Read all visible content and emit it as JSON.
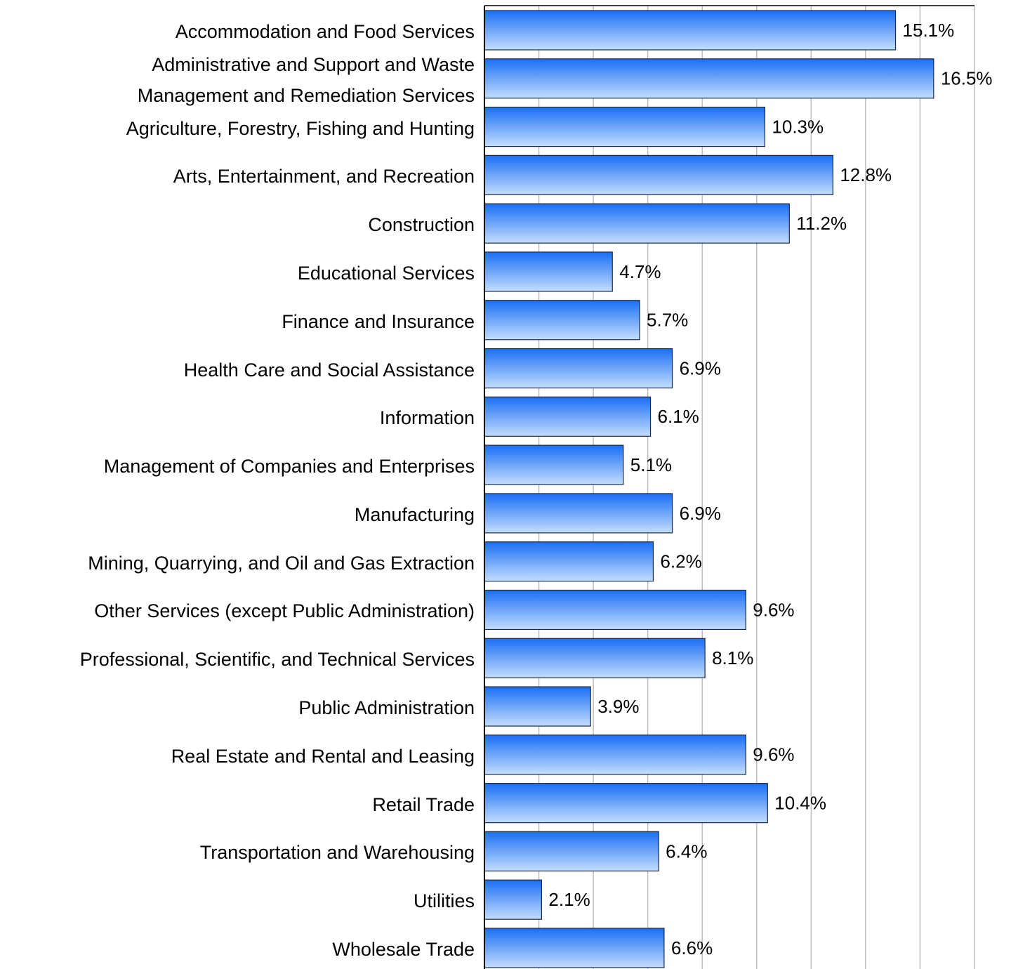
{
  "chart_data": {
    "type": "bar",
    "orientation": "horizontal",
    "categories": [
      "Accommodation and Food Services",
      "Administrative and Support and Waste Management and Remediation Services",
      "Agriculture, Forestry, Fishing and Hunting",
      "Arts, Entertainment, and Recreation",
      "Construction",
      "Educational Services",
      "Finance and Insurance",
      "Health Care and Social Assistance",
      "Information",
      "Management of Companies and Enterprises",
      "Manufacturing",
      "Mining, Quarrying, and Oil and Gas Extraction",
      "Other Services (except Public Administration)",
      "Professional, Scientific, and Technical Services",
      "Public Administration",
      "Real Estate and Rental and Leasing",
      "Retail Trade",
      "Transportation and Warehousing",
      "Utilities",
      "Wholesale Trade"
    ],
    "values": [
      15.1,
      16.5,
      10.3,
      12.8,
      11.2,
      4.7,
      5.7,
      6.9,
      6.1,
      5.1,
      6.9,
      6.2,
      9.6,
      8.1,
      3.9,
      9.6,
      10.4,
      6.4,
      2.1,
      6.6
    ],
    "value_labels": [
      "15.1%",
      "16.5%",
      "10.3%",
      "12.8%",
      "11.2%",
      "4.7%",
      "5.7%",
      "6.9%",
      "6.1%",
      "5.1%",
      "6.9%",
      "6.2%",
      "9.6%",
      "8.1%",
      "3.9%",
      "9.6%",
      "10.4%",
      "6.4%",
      "2.1%",
      "6.6%"
    ],
    "color": "#1a6ef5",
    "xlim": [
      0,
      18
    ],
    "xticks": [
      0,
      2,
      4,
      6,
      8,
      10,
      12,
      14,
      16,
      18
    ],
    "grid": true
  }
}
